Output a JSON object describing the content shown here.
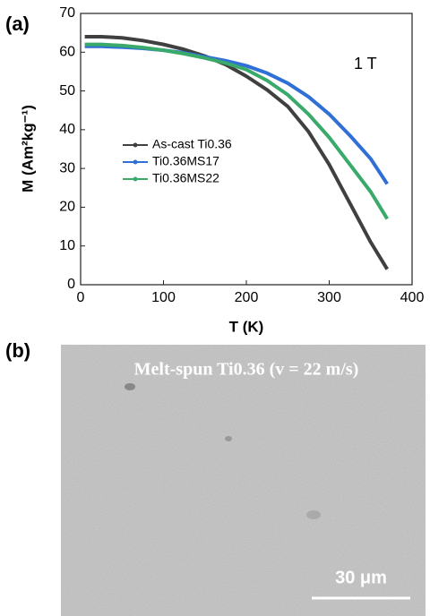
{
  "chart_data": {
    "type": "line",
    "panel_label": "(a)",
    "annotation": "1 T",
    "xlabel": "T (K)",
    "ylabel": "M (Am²kg⁻¹)",
    "x": [
      5,
      25,
      50,
      75,
      100,
      125,
      150,
      175,
      200,
      225,
      250,
      275,
      300,
      325,
      350,
      370
    ],
    "series": [
      {
        "name": "As-cast Ti0.36",
        "color": "#404040",
        "values": [
          64,
          64,
          63.7,
          63,
          62,
          60.7,
          59,
          56.8,
          53.8,
          50.3,
          46,
          39.5,
          31,
          21,
          11,
          4
        ]
      },
      {
        "name": "Ti0.36MS17",
        "color": "#2f6fd6",
        "values": [
          61.5,
          61.5,
          61.3,
          61,
          60.5,
          59.8,
          58.8,
          57.8,
          56.5,
          54.6,
          52,
          48.5,
          44,
          38.5,
          32.5,
          26
        ]
      },
      {
        "name": "Ti0.36MS22",
        "color": "#3aaa6a",
        "values": [
          62,
          62,
          61.7,
          61.2,
          60.5,
          59.6,
          58.5,
          57.2,
          55.5,
          52.7,
          49,
          44,
          38,
          31,
          24,
          17
        ]
      }
    ],
    "xlim": [
      0,
      400
    ],
    "xticks": [
      0,
      100,
      200,
      300,
      400
    ],
    "ylim": [
      0,
      70
    ],
    "yticks": [
      0,
      10,
      20,
      30,
      40,
      50,
      60,
      70
    ]
  },
  "image": {
    "panel_label": "(b)",
    "caption": "Melt-spun Ti0.36 (v = 22 m/s)",
    "scale_bar": "30 μm"
  }
}
